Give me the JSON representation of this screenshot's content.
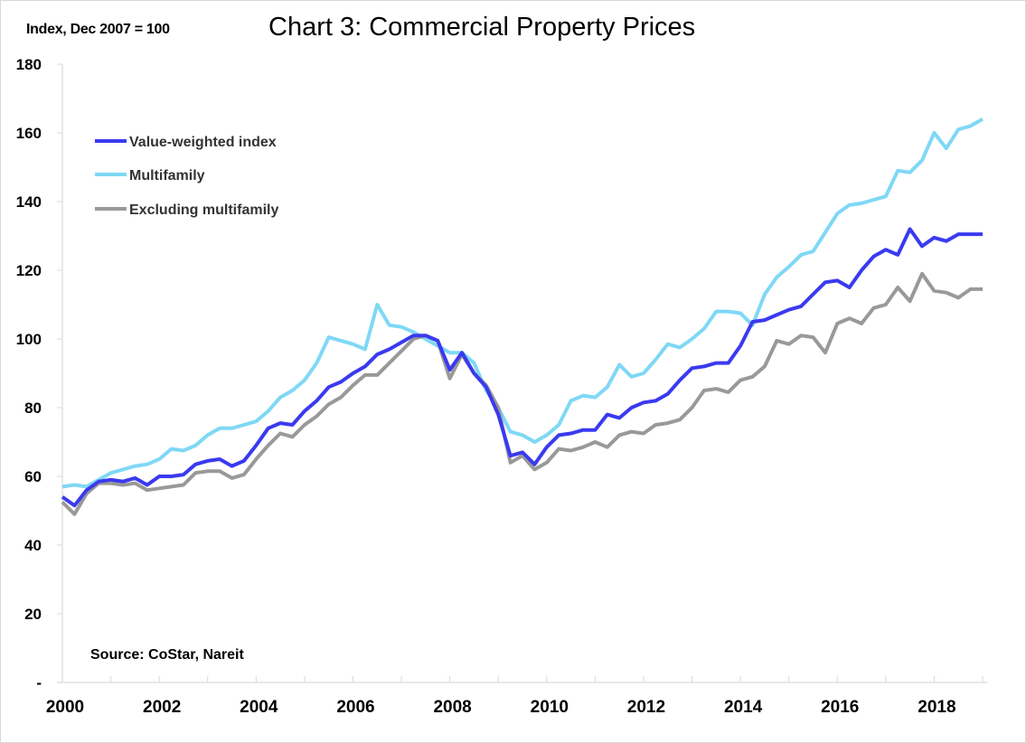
{
  "chart_data": {
    "type": "line",
    "title": "Chart 3: Commercial Property Prices",
    "ylabel": "Index, Dec 2007 = 100",
    "xlabel": "",
    "source": "Source: CoStar, Nareit",
    "ylim": [
      0,
      180
    ],
    "xlim": [
      2000,
      2019
    ],
    "yticks": [
      0,
      20,
      40,
      60,
      80,
      100,
      120,
      140,
      160,
      180
    ],
    "ytick_labels": [
      "-",
      "20",
      "40",
      "60",
      "80",
      "100",
      "120",
      "140",
      "160",
      "180"
    ],
    "xticks_labeled": [
      "2000",
      "2002",
      "2004",
      "2006",
      "2008",
      "2010",
      "2012",
      "2014",
      "2016",
      "2018"
    ],
    "xtick_years": [
      2000,
      2001,
      2002,
      2003,
      2004,
      2005,
      2006,
      2007,
      2008,
      2009,
      2010,
      2011,
      2012,
      2013,
      2014,
      2015,
      2016,
      2017,
      2018,
      2019
    ],
    "grid": false,
    "legend_position": "top-left",
    "x": [
      2000.0,
      2000.25,
      2000.5,
      2000.75,
      2001.0,
      2001.25,
      2001.5,
      2001.75,
      2002.0,
      2002.25,
      2002.5,
      2002.75,
      2003.0,
      2003.25,
      2003.5,
      2003.75,
      2004.0,
      2004.25,
      2004.5,
      2004.75,
      2005.0,
      2005.25,
      2005.5,
      2005.75,
      2006.0,
      2006.25,
      2006.5,
      2006.75,
      2007.0,
      2007.25,
      2007.5,
      2007.75,
      2008.0,
      2008.25,
      2008.5,
      2008.75,
      2009.0,
      2009.25,
      2009.5,
      2009.75,
      2010.0,
      2010.25,
      2010.5,
      2010.75,
      2011.0,
      2011.25,
      2011.5,
      2011.75,
      2012.0,
      2012.25,
      2012.5,
      2012.75,
      2013.0,
      2013.25,
      2013.5,
      2013.75,
      2014.0,
      2014.25,
      2014.5,
      2014.75,
      2015.0,
      2015.25,
      2015.5,
      2015.75,
      2016.0,
      2016.25,
      2016.5,
      2016.75,
      2017.0,
      2017.25,
      2017.5,
      2017.75,
      2018.0,
      2018.25,
      2018.5,
      2018.75,
      2019.0
    ],
    "series": [
      {
        "name": "Value-weighted index",
        "color": "#3a3af0",
        "values": [
          54,
          51.5,
          56,
          58.5,
          59,
          58.5,
          59.5,
          57.5,
          60,
          60,
          60.5,
          63.5,
          64.5,
          65,
          63,
          64.5,
          69,
          74,
          75.5,
          75,
          79,
          82,
          86,
          87.5,
          90,
          92,
          95.5,
          97,
          99,
          101,
          101,
          99.5,
          91,
          96,
          90,
          86,
          78,
          66,
          67,
          63.5,
          68.5,
          72,
          72.5,
          73.5,
          73.5,
          78,
          77,
          80,
          81.5,
          82,
          84,
          88,
          91.5,
          92,
          93,
          93,
          98,
          105,
          105.5,
          107,
          108.5,
          109.5,
          113,
          116.5,
          117,
          115,
          120,
          124,
          126,
          124.5,
          132,
          127,
          129.5,
          128.5,
          130.5,
          130.5,
          130.5
        ]
      },
      {
        "name": "Multifamily",
        "color": "#7fd8f5",
        "values": [
          57,
          57.5,
          57,
          59,
          61,
          62,
          63,
          63.5,
          65,
          68,
          67.5,
          69,
          72,
          74,
          74,
          75,
          76,
          79,
          83,
          85,
          88,
          93,
          100.5,
          99.5,
          98.5,
          97,
          110,
          104,
          103.5,
          102,
          100,
          98,
          96,
          96,
          93,
          85,
          80,
          73,
          72,
          70,
          72,
          75,
          82,
          83.5,
          83,
          86,
          92.5,
          89,
          90,
          94,
          98.5,
          97.5,
          100,
          103,
          108,
          108,
          107.5,
          104,
          113,
          118,
          121,
          124.5,
          125.5,
          131,
          136.5,
          139,
          139.5,
          140.5,
          141.5,
          149,
          148.5,
          152,
          160,
          155.5,
          161,
          162,
          164
        ]
      },
      {
        "name": "Excluding multifamily",
        "color": "#999999",
        "values": [
          52.5,
          49,
          55,
          58,
          58,
          57.5,
          58,
          56,
          56.5,
          57,
          57.5,
          61,
          61.5,
          61.5,
          59.5,
          60.5,
          65,
          69,
          72.5,
          71.5,
          75,
          77.5,
          81,
          83,
          86.5,
          89.5,
          89.5,
          93,
          96.5,
          100,
          101,
          99.5,
          88.5,
          95.5,
          90,
          86.5,
          80,
          64,
          66,
          62,
          64,
          68,
          67.5,
          68.5,
          70,
          68.5,
          72,
          73,
          72.5,
          75,
          75.5,
          76.5,
          80,
          85,
          85.5,
          84.5,
          88,
          89,
          92,
          99.5,
          98.5,
          101,
          100.5,
          96,
          104.5,
          106,
          104.5,
          109,
          110,
          115,
          111,
          119,
          114,
          113.5,
          112,
          114.5,
          114.5
        ]
      }
    ]
  }
}
